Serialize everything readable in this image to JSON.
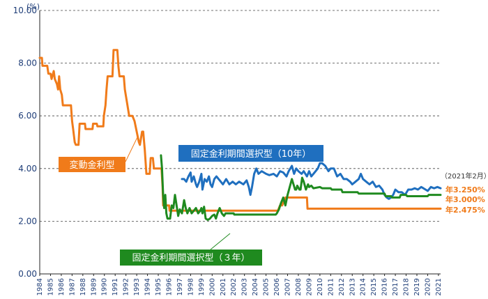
{
  "chart_data": {
    "type": "line",
    "y_unit": "(%)",
    "ylim": [
      0,
      10
    ],
    "yticks": [
      "0.00",
      "2.00",
      "4.00",
      "6.00",
      "8.00",
      "10.00"
    ],
    "x_range": [
      1984,
      2021.2
    ],
    "xticks": [
      "1984",
      "1985",
      "1986",
      "1987",
      "1988",
      "1989",
      "1990",
      "1991",
      "1992",
      "1993",
      "1994",
      "1995",
      "1996",
      "1997",
      "1998",
      "1999",
      "2000",
      "2001",
      "2002",
      "2003",
      "2004",
      "2005",
      "2006",
      "2007",
      "2008",
      "2009",
      "2010",
      "2011",
      "2012",
      "2013",
      "2014",
      "2015",
      "2016",
      "2017",
      "2018",
      "2019",
      "2020",
      "2021"
    ],
    "grid": "horizontal-dashed",
    "as_of_note": "（2021年2月）",
    "series": [
      {
        "name": "変動金利型",
        "color": "#f07b1a",
        "end_label": "年2.475%",
        "points": [
          [
            1984.0,
            8.2
          ],
          [
            1984.2,
            8.2
          ],
          [
            1984.25,
            7.9
          ],
          [
            1984.7,
            7.9
          ],
          [
            1984.8,
            7.6
          ],
          [
            1985.0,
            7.6
          ],
          [
            1985.1,
            7.4
          ],
          [
            1985.3,
            7.7
          ],
          [
            1985.4,
            7.4
          ],
          [
            1985.6,
            7.2
          ],
          [
            1985.7,
            7.0
          ],
          [
            1985.8,
            7.5
          ],
          [
            1985.9,
            7.0
          ],
          [
            1986.05,
            6.8
          ],
          [
            1986.15,
            6.4
          ],
          [
            1986.9,
            6.4
          ],
          [
            1987.0,
            5.8
          ],
          [
            1987.1,
            5.5
          ],
          [
            1987.25,
            5.0
          ],
          [
            1987.35,
            4.9
          ],
          [
            1987.6,
            4.9
          ],
          [
            1987.7,
            5.7
          ],
          [
            1988.2,
            5.7
          ],
          [
            1988.25,
            5.5
          ],
          [
            1988.9,
            5.5
          ],
          [
            1988.95,
            5.7
          ],
          [
            1989.3,
            5.7
          ],
          [
            1989.35,
            5.6
          ],
          [
            1989.9,
            5.6
          ],
          [
            1989.95,
            6.0
          ],
          [
            1990.1,
            6.4
          ],
          [
            1990.2,
            7.0
          ],
          [
            1990.3,
            7.5
          ],
          [
            1990.75,
            7.5
          ],
          [
            1990.85,
            8.5
          ],
          [
            1991.2,
            8.5
          ],
          [
            1991.3,
            7.9
          ],
          [
            1991.4,
            7.5
          ],
          [
            1991.8,
            7.5
          ],
          [
            1991.9,
            7.0
          ],
          [
            1992.1,
            6.5
          ],
          [
            1992.3,
            6.0
          ],
          [
            1992.6,
            6.0
          ],
          [
            1992.8,
            5.8
          ],
          [
            1993.0,
            5.4
          ],
          [
            1993.2,
            5.0
          ],
          [
            1993.3,
            4.9
          ],
          [
            1993.5,
            5.4
          ],
          [
            1993.6,
            5.4
          ],
          [
            1993.75,
            4.7
          ],
          [
            1993.9,
            3.8
          ],
          [
            1994.2,
            3.8
          ],
          [
            1994.3,
            4.4
          ],
          [
            1994.5,
            4.4
          ],
          [
            1994.6,
            4.0
          ],
          [
            1995.3,
            4.0
          ],
          [
            1995.4,
            3.3
          ],
          [
            1995.45,
            2.6
          ],
          [
            1996.0,
            2.6
          ],
          [
            1996.05,
            2.4
          ],
          [
            2006.1,
            2.4
          ],
          [
            2006.3,
            2.6
          ],
          [
            2006.5,
            2.6
          ],
          [
            2006.8,
            2.9
          ],
          [
            2008.8,
            2.9
          ],
          [
            2008.85,
            2.475
          ],
          [
            2021.2,
            2.475
          ]
        ]
      },
      {
        "name": "固定金利期間選択型（10年）",
        "color": "#1f6fbf",
        "end_label": "年3.250%",
        "points": [
          [
            1997.2,
            3.6
          ],
          [
            1997.4,
            3.6
          ],
          [
            1997.6,
            3.5
          ],
          [
            1997.8,
            3.7
          ],
          [
            1998.0,
            3.85
          ],
          [
            1998.1,
            3.5
          ],
          [
            1998.3,
            3.7
          ],
          [
            1998.5,
            3.4
          ],
          [
            1998.6,
            3.3
          ],
          [
            1998.8,
            3.5
          ],
          [
            1999.0,
            3.8
          ],
          [
            1999.1,
            3.2
          ],
          [
            1999.3,
            3.6
          ],
          [
            1999.5,
            3.5
          ],
          [
            1999.7,
            3.7
          ],
          [
            1999.85,
            3.4
          ],
          [
            2000.0,
            3.3
          ],
          [
            2000.2,
            3.6
          ],
          [
            2000.4,
            3.7
          ],
          [
            2000.6,
            3.6
          ],
          [
            2000.8,
            3.5
          ],
          [
            2001.0,
            3.4
          ],
          [
            2001.3,
            3.6
          ],
          [
            2001.6,
            3.4
          ],
          [
            2001.9,
            3.5
          ],
          [
            2002.2,
            3.4
          ],
          [
            2002.5,
            3.5
          ],
          [
            2002.9,
            3.4
          ],
          [
            2003.2,
            3.55
          ],
          [
            2003.4,
            3.3
          ],
          [
            2003.55,
            3.0
          ],
          [
            2003.7,
            3.3
          ],
          [
            2003.9,
            3.8
          ],
          [
            2004.1,
            4.0
          ],
          [
            2004.3,
            3.8
          ],
          [
            2004.6,
            3.9
          ],
          [
            2005.0,
            3.8
          ],
          [
            2005.3,
            3.75
          ],
          [
            2005.7,
            3.8
          ],
          [
            2006.0,
            3.7
          ],
          [
            2006.3,
            3.9
          ],
          [
            2006.6,
            3.85
          ],
          [
            2006.9,
            3.7
          ],
          [
            2007.1,
            3.9
          ],
          [
            2007.4,
            4.1
          ],
          [
            2007.6,
            3.8
          ],
          [
            2007.8,
            4.0
          ],
          [
            2008.0,
            3.9
          ],
          [
            2008.3,
            3.8
          ],
          [
            2008.5,
            3.9
          ],
          [
            2008.8,
            3.7
          ],
          [
            2009.0,
            3.9
          ],
          [
            2009.2,
            3.7
          ],
          [
            2009.5,
            3.85
          ],
          [
            2009.8,
            4.0
          ],
          [
            2010.0,
            4.2
          ],
          [
            2010.2,
            4.2
          ],
          [
            2010.5,
            4.1
          ],
          [
            2010.8,
            3.9
          ],
          [
            2011.0,
            4.0
          ],
          [
            2011.3,
            4.0
          ],
          [
            2011.6,
            3.7
          ],
          [
            2011.9,
            3.8
          ],
          [
            2012.2,
            3.6
          ],
          [
            2012.5,
            3.6
          ],
          [
            2012.8,
            3.5
          ],
          [
            2013.0,
            3.4
          ],
          [
            2013.3,
            3.5
          ],
          [
            2013.6,
            3.6
          ],
          [
            2013.8,
            3.8
          ],
          [
            2014.0,
            3.6
          ],
          [
            2014.3,
            3.5
          ],
          [
            2014.6,
            3.4
          ],
          [
            2014.9,
            3.5
          ],
          [
            2015.2,
            3.3
          ],
          [
            2015.5,
            3.35
          ],
          [
            2015.8,
            3.2
          ],
          [
            2016.0,
            3.0
          ],
          [
            2016.2,
            2.9
          ],
          [
            2016.4,
            2.85
          ],
          [
            2016.6,
            2.9
          ],
          [
            2016.8,
            3.0
          ],
          [
            2017.0,
            3.2
          ],
          [
            2017.3,
            3.1
          ],
          [
            2017.6,
            3.1
          ],
          [
            2017.9,
            3.0
          ],
          [
            2018.2,
            3.2
          ],
          [
            2018.5,
            3.2
          ],
          [
            2018.8,
            3.25
          ],
          [
            2019.1,
            3.2
          ],
          [
            2019.4,
            3.3
          ],
          [
            2019.6,
            3.25
          ],
          [
            2019.8,
            3.2
          ],
          [
            2020.0,
            3.15
          ],
          [
            2020.3,
            3.3
          ],
          [
            2020.6,
            3.25
          ],
          [
            2020.9,
            3.3
          ],
          [
            2021.2,
            3.25
          ]
        ]
      },
      {
        "name": "固定金利期間選択型（３年）",
        "color": "#1f8a1f",
        "end_label": "年3.000%",
        "points": [
          [
            1995.25,
            4.5
          ],
          [
            1995.35,
            4.0
          ],
          [
            1995.45,
            3.0
          ],
          [
            1995.55,
            2.5
          ],
          [
            1995.65,
            3.0
          ],
          [
            1995.75,
            2.3
          ],
          [
            1995.85,
            2.1
          ],
          [
            1996.1,
            2.1
          ],
          [
            1996.25,
            2.6
          ],
          [
            1996.4,
            2.5
          ],
          [
            1996.55,
            3.0
          ],
          [
            1996.7,
            2.6
          ],
          [
            1996.85,
            2.2
          ],
          [
            1997.0,
            2.45
          ],
          [
            1997.2,
            2.3
          ],
          [
            1997.4,
            2.8
          ],
          [
            1997.55,
            2.5
          ],
          [
            1997.7,
            2.3
          ],
          [
            1997.9,
            2.5
          ],
          [
            1998.1,
            2.3
          ],
          [
            1998.3,
            2.4
          ],
          [
            1998.5,
            2.5
          ],
          [
            1998.7,
            2.3
          ],
          [
            1998.9,
            2.4
          ],
          [
            1999.0,
            2.5
          ],
          [
            1999.1,
            2.3
          ],
          [
            1999.25,
            2.55
          ],
          [
            1999.4,
            2.1
          ],
          [
            1999.6,
            2.05
          ],
          [
            1999.8,
            2.1
          ],
          [
            2000.0,
            2.2
          ],
          [
            2000.2,
            2.25
          ],
          [
            2000.35,
            2.1
          ],
          [
            2000.5,
            2.3
          ],
          [
            2000.7,
            2.5
          ],
          [
            2000.9,
            2.3
          ],
          [
            2001.1,
            2.2
          ],
          [
            2001.25,
            2.3
          ],
          [
            2002.0,
            2.3
          ],
          [
            2002.05,
            2.25
          ],
          [
            2005.9,
            2.25
          ],
          [
            2006.0,
            2.3
          ],
          [
            2006.2,
            2.45
          ],
          [
            2006.4,
            2.7
          ],
          [
            2006.6,
            2.9
          ],
          [
            2006.8,
            2.6
          ],
          [
            2007.0,
            3.0
          ],
          [
            2007.2,
            3.3
          ],
          [
            2007.4,
            3.6
          ],
          [
            2007.55,
            3.4
          ],
          [
            2007.7,
            3.2
          ],
          [
            2007.8,
            3.2
          ],
          [
            2007.9,
            3.35
          ],
          [
            2008.1,
            3.2
          ],
          [
            2008.2,
            3.2
          ],
          [
            2008.35,
            3.65
          ],
          [
            2008.5,
            3.5
          ],
          [
            2008.7,
            3.2
          ],
          [
            2008.9,
            3.4
          ],
          [
            2009.0,
            3.3
          ],
          [
            2009.2,
            3.35
          ],
          [
            2009.4,
            3.25
          ],
          [
            2010.0,
            3.3
          ],
          [
            2010.2,
            3.25
          ],
          [
            2011.0,
            3.25
          ],
          [
            2011.1,
            3.2
          ],
          [
            2012.0,
            3.2
          ],
          [
            2012.1,
            3.1
          ],
          [
            2013.5,
            3.1
          ],
          [
            2013.6,
            3.05
          ],
          [
            2016.0,
            3.05
          ],
          [
            2016.1,
            2.95
          ],
          [
            2016.6,
            2.95
          ],
          [
            2016.7,
            2.9
          ],
          [
            2017.4,
            2.9
          ],
          [
            2017.5,
            3.0
          ],
          [
            2018.0,
            3.0
          ],
          [
            2018.1,
            2.95
          ],
          [
            2020.0,
            2.95
          ],
          [
            2020.1,
            3.0
          ],
          [
            2021.2,
            3.0
          ]
        ]
      }
    ]
  }
}
